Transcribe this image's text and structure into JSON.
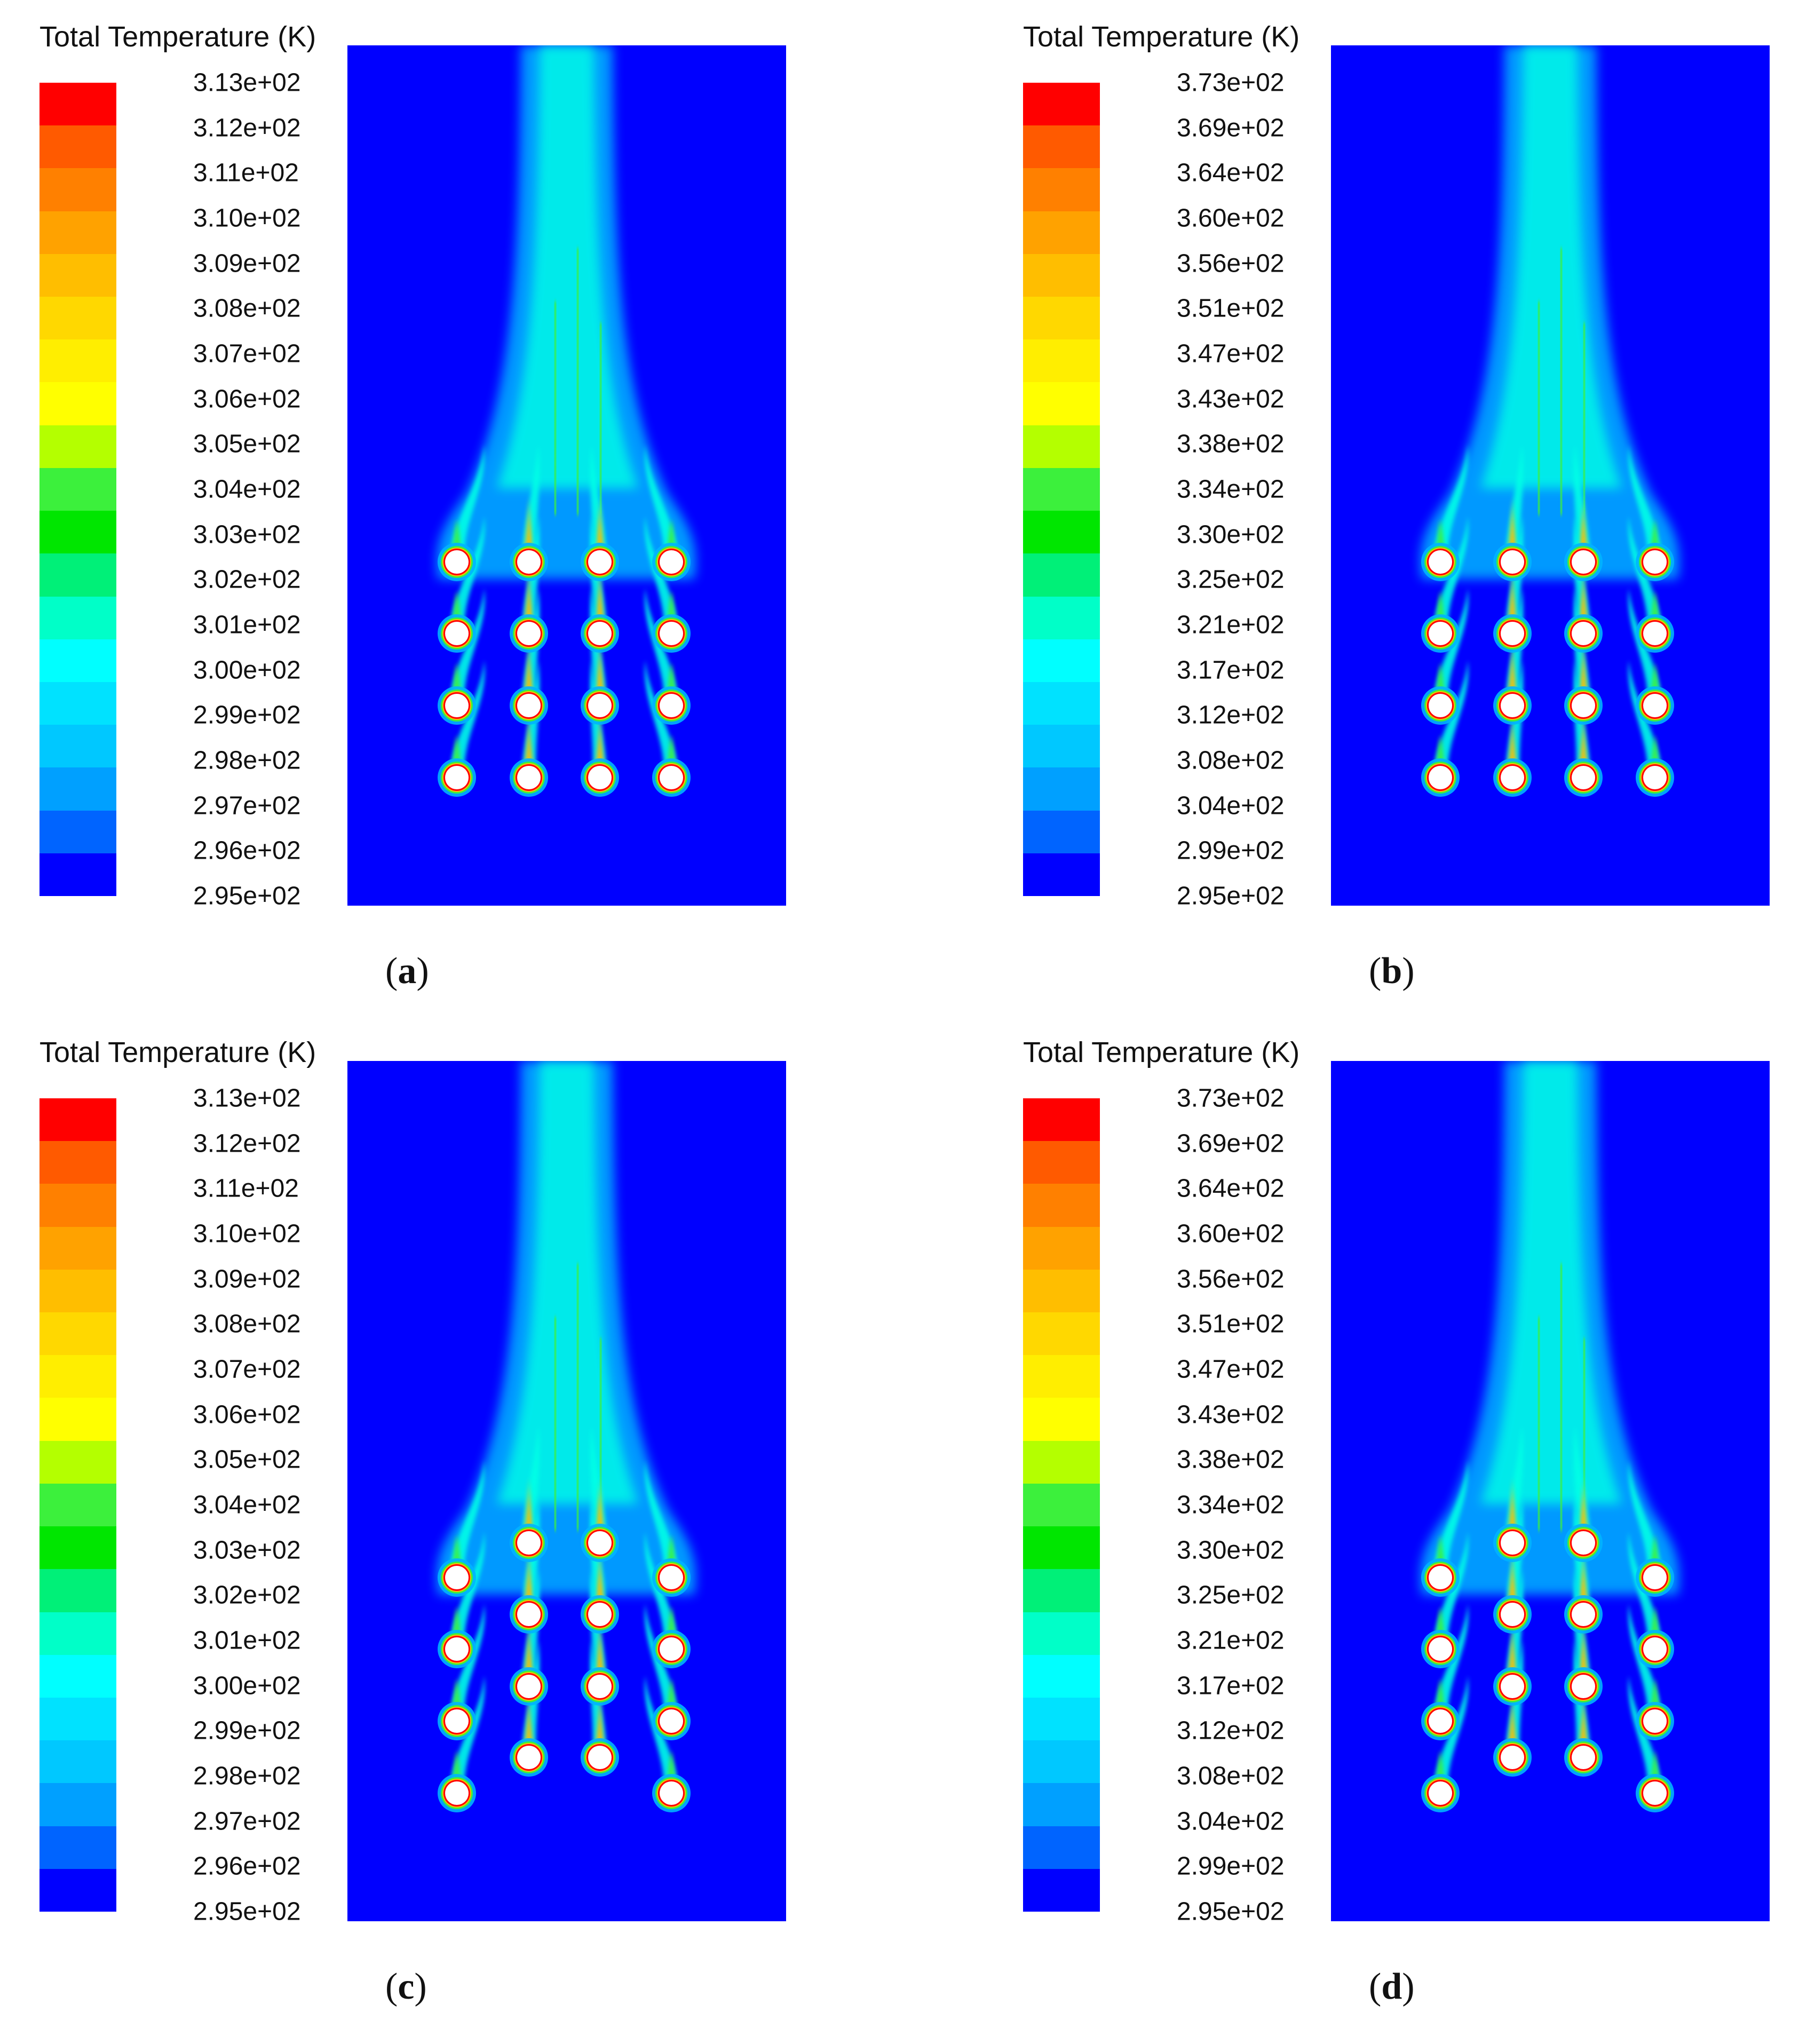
{
  "panels": [
    {
      "id": "a",
      "title": "Total Temperature",
      "unit": "(K)",
      "caption_letter": "a",
      "layout": "inline",
      "colorbar_labels": [
        "3.13e+02",
        "3.12e+02",
        "3.11e+02",
        "3.10e+02",
        "3.09e+02",
        "3.08e+02",
        "3.07e+02",
        "3.06e+02",
        "3.05e+02",
        "3.04e+02",
        "3.03e+02",
        "3.02e+02",
        "3.01e+02",
        "3.00e+02",
        "2.99e+02",
        "2.98e+02",
        "2.97e+02",
        "2.96e+02",
        "2.95e+02"
      ]
    },
    {
      "id": "b",
      "title": "Total Temperature",
      "unit": "(K)",
      "caption_letter": "b",
      "layout": "inline",
      "colorbar_labels": [
        "3.73e+02",
        "3.69e+02",
        "3.64e+02",
        "3.60e+02",
        "3.56e+02",
        "3.51e+02",
        "3.47e+02",
        "3.43e+02",
        "3.38e+02",
        "3.34e+02",
        "3.30e+02",
        "3.25e+02",
        "3.21e+02",
        "3.17e+02",
        "3.12e+02",
        "3.08e+02",
        "3.04e+02",
        "2.99e+02",
        "2.95e+02"
      ]
    },
    {
      "id": "c",
      "title": "Total Temperature",
      "unit": "(K)",
      "caption_letter": "c",
      "layout": "staggered",
      "colorbar_labels": [
        "3.13e+02",
        "3.12e+02",
        "3.11e+02",
        "3.10e+02",
        "3.09e+02",
        "3.08e+02",
        "3.07e+02",
        "3.06e+02",
        "3.05e+02",
        "3.04e+02",
        "3.03e+02",
        "3.02e+02",
        "3.01e+02",
        "3.00e+02",
        "2.99e+02",
        "2.98e+02",
        "2.97e+02",
        "2.96e+02",
        "2.95e+02"
      ]
    },
    {
      "id": "d",
      "title": "Total Temperature",
      "unit": "(K)",
      "caption_letter": "d",
      "layout": "staggered",
      "colorbar_labels": [
        "3.73e+02",
        "3.69e+02",
        "3.64e+02",
        "3.60e+02",
        "3.56e+02",
        "3.51e+02",
        "3.47e+02",
        "3.43e+02",
        "3.38e+02",
        "3.34e+02",
        "3.30e+02",
        "3.25e+02",
        "3.21e+02",
        "3.17e+02",
        "3.12e+02",
        "3.08e+02",
        "3.04e+02",
        "2.99e+02",
        "2.95e+02"
      ]
    }
  ],
  "colormap": [
    "#ff0000",
    "#ff5a00",
    "#ff8000",
    "#ffa200",
    "#ffbe00",
    "#ffd800",
    "#ffee00",
    "#ffff00",
    "#b4ff00",
    "#3cf03c",
    "#00e600",
    "#00f078",
    "#00ffc8",
    "#00ffff",
    "#00e2ff",
    "#00c8ff",
    "#00a0ff",
    "#0064ff",
    "#0000ff"
  ],
  "field_colors": {
    "background": "#0000ff",
    "plume_outer": "#00b4ff",
    "plume_mid": "#00ffe6",
    "plume_core": "#3cf03c",
    "tube_hot": "#ff0000",
    "tube_warm": "#ffbe00",
    "tube_fill": "#ffffff"
  }
}
